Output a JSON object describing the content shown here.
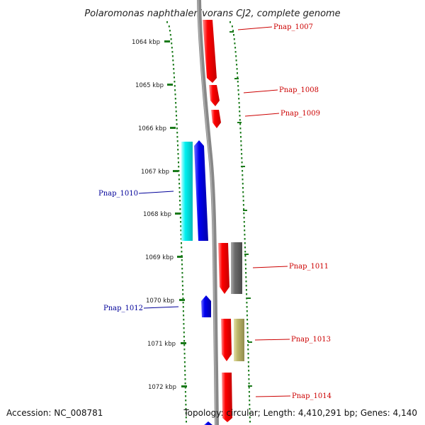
{
  "title": "Polaromonas naphthalenivorans CJ2, complete genome",
  "accession": "Accession: NC_008781",
  "summary": "Topology: circular; Length: 4,410,291 bp; Genes: 4,140",
  "ticks": [
    "1064 kbp",
    "1065 kbp",
    "1066 kbp",
    "1067 kbp",
    "1068 kbp",
    "1069 kbp",
    "1070 kbp",
    "1071 kbp",
    "1072 kbp"
  ],
  "labels": {
    "g1007": "Pnap_1007",
    "g1008": "Pnap_1008",
    "g1009": "Pnap_1009",
    "g1010": "Pnap_1010",
    "g1011": "Pnap_1011",
    "g1012": "Pnap_1012",
    "g1013": "Pnap_1013",
    "g1014": "Pnap_1014"
  },
  "colors": {
    "forward": "#ff0000",
    "reverse": "#0000ee",
    "forward_label": "#cc0000",
    "reverse_label": "#000099",
    "cyan": "#00eeee",
    "gray": "#6b6b6b",
    "khaki": "#bdb76b",
    "ticks": "#1a7a1a",
    "backbone": "#888888"
  }
}
